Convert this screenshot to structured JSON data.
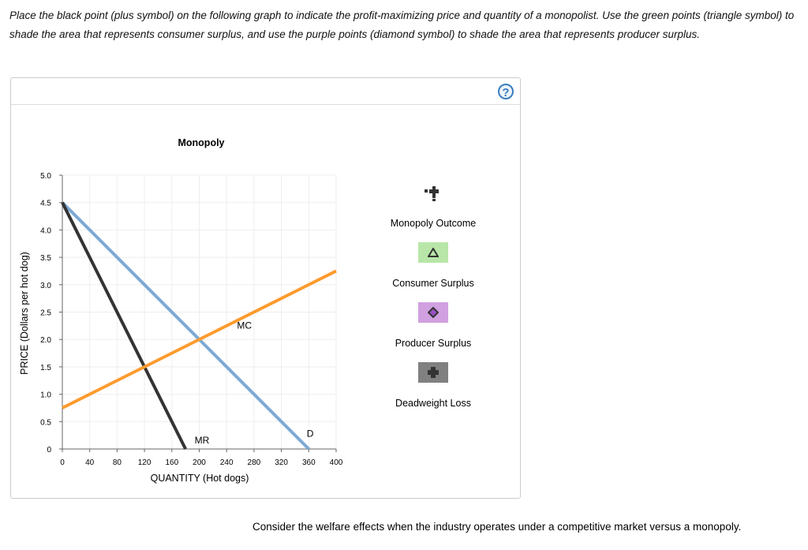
{
  "instructions": "Place the black point (plus symbol) on the following graph to indicate the profit-maximizing price and quantity of a monopolist. Use the green points (triangle symbol) to shade the area that represents consumer surplus, and use the purple points (diamond symbol) to shade the area that represents producer surplus.",
  "help_label": "?",
  "legend": {
    "monopoly": "Monopoly Outcome",
    "cs": "Consumer Surplus",
    "ps": "Producer Surplus",
    "dwl": "Deadweight Loss",
    "colors": {
      "cs": "#b8e6a8",
      "ps": "#d0a0e0",
      "dwl": "#808080"
    }
  },
  "footer": "Consider the welfare effects when the industry operates under a competitive market versus a monopoly.",
  "chart_data": {
    "type": "line",
    "title": "Monopoly",
    "xlabel": "QUANTITY (Hot dogs)",
    "ylabel": "PRICE (Dollars per hot dog)",
    "xlim": [
      0,
      400
    ],
    "ylim": [
      0,
      5
    ],
    "xticks": [
      "0",
      "40",
      "80",
      "120",
      "160",
      "200",
      "240",
      "280",
      "320",
      "360",
      "400"
    ],
    "yticks": [
      "0",
      "0.5",
      "1.0",
      "1.5",
      "2.0",
      "2.5",
      "3.0",
      "3.5",
      "4.0",
      "4.5",
      "5.0"
    ],
    "grid": true,
    "series": [
      {
        "name": "D",
        "color": "#7aaad4",
        "points": [
          [
            0,
            4.5
          ],
          [
            360,
            0
          ]
        ]
      },
      {
        "name": "MR",
        "color": "#333333",
        "points": [
          [
            0,
            4.5
          ],
          [
            180,
            0
          ]
        ]
      },
      {
        "name": "MC",
        "color": "#ff9b2e",
        "points": [
          [
            0,
            0.75
          ],
          [
            400,
            3.25
          ]
        ]
      }
    ],
    "labels": [
      {
        "text": "MC",
        "x": 266,
        "y": 2.2
      },
      {
        "text": "MR",
        "x": 204,
        "y": 0.1
      },
      {
        "text": "D",
        "x": 362,
        "y": 0.22
      }
    ]
  }
}
